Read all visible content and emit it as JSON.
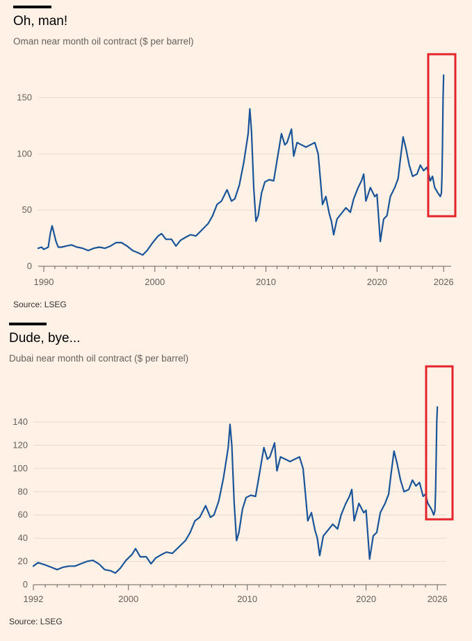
{
  "chart_data": [
    {
      "type": "line",
      "title": "Oh, man!",
      "subtitle": "Oman near month oil contract ($ per barrel)",
      "source": "Source: LSEG",
      "xlim": [
        1989.5,
        2026.3
      ],
      "ylim": [
        0,
        175
      ],
      "y_ticks": [
        0,
        50,
        100,
        150
      ],
      "x_ticks": [
        1990,
        2000,
        2010,
        2020,
        2026
      ],
      "x_tick_labels": [
        "1990",
        "2000",
        "2010",
        "2020",
        "2026"
      ],
      "grid": true,
      "series_color": "#1a5498",
      "highlight_color": "#e3242b",
      "series": [
        {
          "values": [
            [
              1989.5,
              16
            ],
            [
              1989.8,
              17
            ],
            [
              1990.0,
              15
            ],
            [
              1990.4,
              17
            ],
            [
              1990.6,
              30
            ],
            [
              1990.75,
              36
            ],
            [
              1990.9,
              30
            ],
            [
              1991.1,
              22
            ],
            [
              1991.3,
              17
            ],
            [
              1991.6,
              17
            ],
            [
              1992.0,
              18
            ],
            [
              1992.5,
              19
            ],
            [
              1993.0,
              17
            ],
            [
              1993.5,
              16
            ],
            [
              1994.0,
              14
            ],
            [
              1994.5,
              16
            ],
            [
              1995.0,
              17
            ],
            [
              1995.5,
              16
            ],
            [
              1996.0,
              18
            ],
            [
              1996.5,
              21
            ],
            [
              1997.0,
              21
            ],
            [
              1997.5,
              18
            ],
            [
              1998.0,
              14
            ],
            [
              1998.5,
              12
            ],
            [
              1998.9,
              10
            ],
            [
              1999.3,
              14
            ],
            [
              1999.8,
              21
            ],
            [
              2000.3,
              27
            ],
            [
              2000.6,
              29
            ],
            [
              2001.0,
              24
            ],
            [
              2001.5,
              24
            ],
            [
              2001.9,
              18
            ],
            [
              2002.3,
              23
            ],
            [
              2002.8,
              26
            ],
            [
              2003.2,
              28
            ],
            [
              2003.7,
              27
            ],
            [
              2004.0,
              30
            ],
            [
              2004.5,
              35
            ],
            [
              2004.8,
              38
            ],
            [
              2005.2,
              45
            ],
            [
              2005.6,
              55
            ],
            [
              2006.0,
              58
            ],
            [
              2006.5,
              68
            ],
            [
              2006.9,
              58
            ],
            [
              2007.2,
              60
            ],
            [
              2007.6,
              72
            ],
            [
              2008.0,
              92
            ],
            [
              2008.4,
              118
            ],
            [
              2008.55,
              140
            ],
            [
              2008.7,
              120
            ],
            [
              2008.9,
              70
            ],
            [
              2009.1,
              40
            ],
            [
              2009.3,
              45
            ],
            [
              2009.6,
              65
            ],
            [
              2009.9,
              75
            ],
            [
              2010.3,
              77
            ],
            [
              2010.7,
              76
            ],
            [
              2010.9,
              88
            ],
            [
              2011.1,
              100
            ],
            [
              2011.4,
              118
            ],
            [
              2011.7,
              108
            ],
            [
              2011.9,
              110
            ],
            [
              2012.3,
              122
            ],
            [
              2012.5,
              98
            ],
            [
              2012.8,
              110
            ],
            [
              2013.2,
              108
            ],
            [
              2013.6,
              106
            ],
            [
              2014.0,
              108
            ],
            [
              2014.4,
              110
            ],
            [
              2014.7,
              100
            ],
            [
              2014.9,
              78
            ],
            [
              2015.1,
              55
            ],
            [
              2015.4,
              62
            ],
            [
              2015.7,
              47
            ],
            [
              2015.9,
              40
            ],
            [
              2016.1,
              28
            ],
            [
              2016.4,
              42
            ],
            [
              2016.8,
              47
            ],
            [
              2017.2,
              52
            ],
            [
              2017.6,
              48
            ],
            [
              2017.9,
              60
            ],
            [
              2018.3,
              70
            ],
            [
              2018.6,
              76
            ],
            [
              2018.8,
              82
            ],
            [
              2019.0,
              58
            ],
            [
              2019.4,
              70
            ],
            [
              2019.8,
              62
            ],
            [
              2020.0,
              64
            ],
            [
              2020.3,
              22
            ],
            [
              2020.6,
              42
            ],
            [
              2020.9,
              45
            ],
            [
              2021.2,
              62
            ],
            [
              2021.6,
              70
            ],
            [
              2021.9,
              78
            ],
            [
              2022.1,
              95
            ],
            [
              2022.35,
              115
            ],
            [
              2022.6,
              105
            ],
            [
              2022.9,
              90
            ],
            [
              2023.2,
              80
            ],
            [
              2023.6,
              82
            ],
            [
              2023.9,
              90
            ],
            [
              2024.2,
              85
            ],
            [
              2024.5,
              88
            ],
            [
              2024.8,
              76
            ],
            [
              2025.0,
              80
            ],
            [
              2025.2,
              70
            ],
            [
              2025.5,
              65
            ],
            [
              2025.7,
              62
            ],
            [
              2025.8,
              65
            ],
            [
              2025.85,
              80
            ],
            [
              2025.9,
              110
            ],
            [
              2025.95,
              150
            ],
            [
              2026.0,
              170
            ]
          ]
        }
      ]
    },
    {
      "type": "line",
      "title": "Dude, bye...",
      "subtitle": "Dubai near month oil contract ($ per barrel)",
      "source": "Source: LSEG",
      "xlim": [
        1992,
        2026.4
      ],
      "ylim": [
        0,
        155
      ],
      "y_ticks": [
        0,
        20,
        40,
        60,
        80,
        100,
        120,
        140
      ],
      "x_ticks": [
        1992,
        2000,
        2010,
        2020,
        2026
      ],
      "x_tick_labels": [
        "1992",
        "2000",
        "2010",
        "2020",
        "2026"
      ],
      "grid": true,
      "series_color": "#1a5498",
      "highlight_color": "#e3242b",
      "series": [
        {
          "values": [
            [
              1992.0,
              16
            ],
            [
              1992.4,
              19
            ],
            [
              1993.0,
              17
            ],
            [
              1993.5,
              15
            ],
            [
              1994.0,
              13
            ],
            [
              1994.5,
              15
            ],
            [
              1995.0,
              16
            ],
            [
              1995.5,
              16
            ],
            [
              1996.0,
              18
            ],
            [
              1996.5,
              20
            ],
            [
              1997.0,
              21
            ],
            [
              1997.5,
              18
            ],
            [
              1998.0,
              13
            ],
            [
              1998.5,
              12
            ],
            [
              1998.9,
              10
            ],
            [
              1999.3,
              14
            ],
            [
              1999.8,
              21
            ],
            [
              2000.3,
              26
            ],
            [
              2000.6,
              31
            ],
            [
              2001.0,
              24
            ],
            [
              2001.5,
              24
            ],
            [
              2001.9,
              18
            ],
            [
              2002.3,
              23
            ],
            [
              2002.8,
              26
            ],
            [
              2003.2,
              28
            ],
            [
              2003.7,
              27
            ],
            [
              2004.0,
              30
            ],
            [
              2004.5,
              35
            ],
            [
              2004.8,
              38
            ],
            [
              2005.2,
              45
            ],
            [
              2005.6,
              55
            ],
            [
              2006.0,
              58
            ],
            [
              2006.5,
              68
            ],
            [
              2006.9,
              58
            ],
            [
              2007.2,
              60
            ],
            [
              2007.6,
              72
            ],
            [
              2008.0,
              92
            ],
            [
              2008.4,
              118
            ],
            [
              2008.55,
              138
            ],
            [
              2008.7,
              120
            ],
            [
              2008.9,
              70
            ],
            [
              2009.1,
              38
            ],
            [
              2009.3,
              45
            ],
            [
              2009.6,
              65
            ],
            [
              2009.9,
              75
            ],
            [
              2010.3,
              77
            ],
            [
              2010.7,
              76
            ],
            [
              2010.9,
              88
            ],
            [
              2011.1,
              100
            ],
            [
              2011.4,
              118
            ],
            [
              2011.7,
              108
            ],
            [
              2011.9,
              110
            ],
            [
              2012.3,
              122
            ],
            [
              2012.5,
              98
            ],
            [
              2012.8,
              110
            ],
            [
              2013.2,
              108
            ],
            [
              2013.6,
              106
            ],
            [
              2014.0,
              108
            ],
            [
              2014.4,
              110
            ],
            [
              2014.7,
              100
            ],
            [
              2014.9,
              78
            ],
            [
              2015.1,
              55
            ],
            [
              2015.4,
              62
            ],
            [
              2015.7,
              47
            ],
            [
              2015.9,
              40
            ],
            [
              2016.1,
              25
            ],
            [
              2016.4,
              42
            ],
            [
              2016.8,
              47
            ],
            [
              2017.2,
              52
            ],
            [
              2017.6,
              48
            ],
            [
              2017.9,
              60
            ],
            [
              2018.3,
              70
            ],
            [
              2018.6,
              76
            ],
            [
              2018.8,
              82
            ],
            [
              2019.0,
              55
            ],
            [
              2019.4,
              70
            ],
            [
              2019.8,
              62
            ],
            [
              2020.0,
              64
            ],
            [
              2020.3,
              22
            ],
            [
              2020.6,
              42
            ],
            [
              2020.9,
              45
            ],
            [
              2021.2,
              62
            ],
            [
              2021.6,
              70
            ],
            [
              2021.9,
              78
            ],
            [
              2022.1,
              95
            ],
            [
              2022.35,
              115
            ],
            [
              2022.6,
              105
            ],
            [
              2022.9,
              90
            ],
            [
              2023.2,
              80
            ],
            [
              2023.6,
              82
            ],
            [
              2023.9,
              90
            ],
            [
              2024.2,
              85
            ],
            [
              2024.5,
              88
            ],
            [
              2024.8,
              76
            ],
            [
              2025.0,
              78
            ],
            [
              2025.2,
              70
            ],
            [
              2025.5,
              65
            ],
            [
              2025.7,
              60
            ],
            [
              2025.8,
              64
            ],
            [
              2025.85,
              80
            ],
            [
              2025.9,
              110
            ],
            [
              2025.95,
              140
            ],
            [
              2026.0,
              153
            ]
          ]
        }
      ]
    }
  ]
}
